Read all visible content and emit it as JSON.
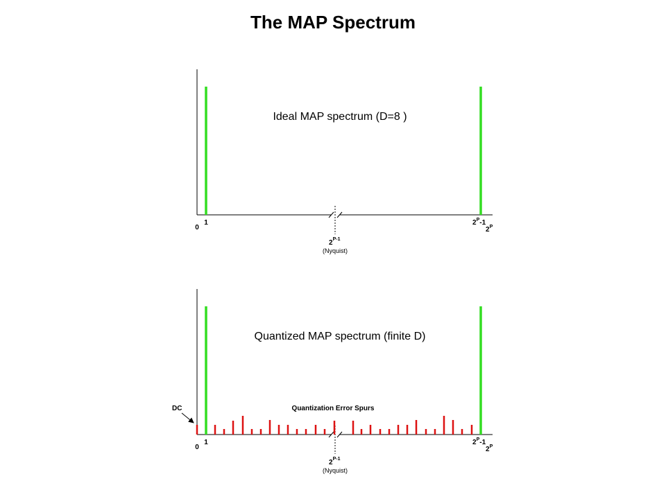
{
  "title": "The MAP Spectrum",
  "panels": [
    {
      "caption": "Ideal MAP spectrum (D=8 )",
      "ticks": {
        "zero": "0",
        "one": "1",
        "last_base": "2",
        "last_exp": "P",
        "last_tail": "-1",
        "full_base": "2",
        "full_exp": "P",
        "half_base": "2",
        "half_exp": "P-1",
        "half_note": "(Nyquist)"
      }
    },
    {
      "caption": "Quantized MAP spectrum (finite D)",
      "dc": "DC",
      "spurs": "Quantization Error Spurs",
      "ticks": {
        "zero": "0",
        "one": "1",
        "last_base": "2",
        "last_exp": "P",
        "last_tail": "-1",
        "full_base": "2",
        "full_exp": "P",
        "half_base": "2",
        "half_exp": "P-1",
        "half_note": "(Nyquist)"
      }
    }
  ]
}
